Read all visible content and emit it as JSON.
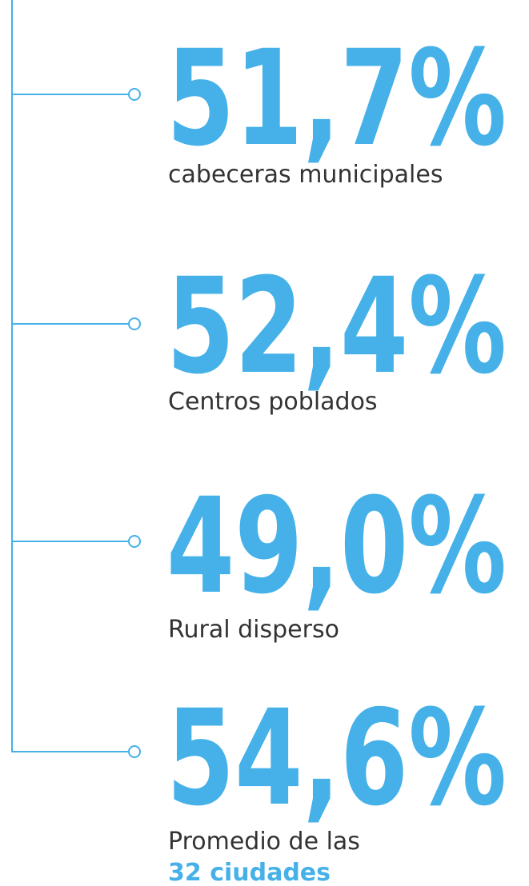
{
  "items": [
    {
      "value": "51,7%",
      "label": "cabeceras municipales"
    },
    {
      "value": "52,4%",
      "label": "Centros poblados"
    },
    {
      "value": "49,0%",
      "label": "Rural disperso"
    },
    {
      "value": "54,6%",
      "label": "Promedio de las",
      "label_bold": "32 ciudades"
    }
  ]
}
